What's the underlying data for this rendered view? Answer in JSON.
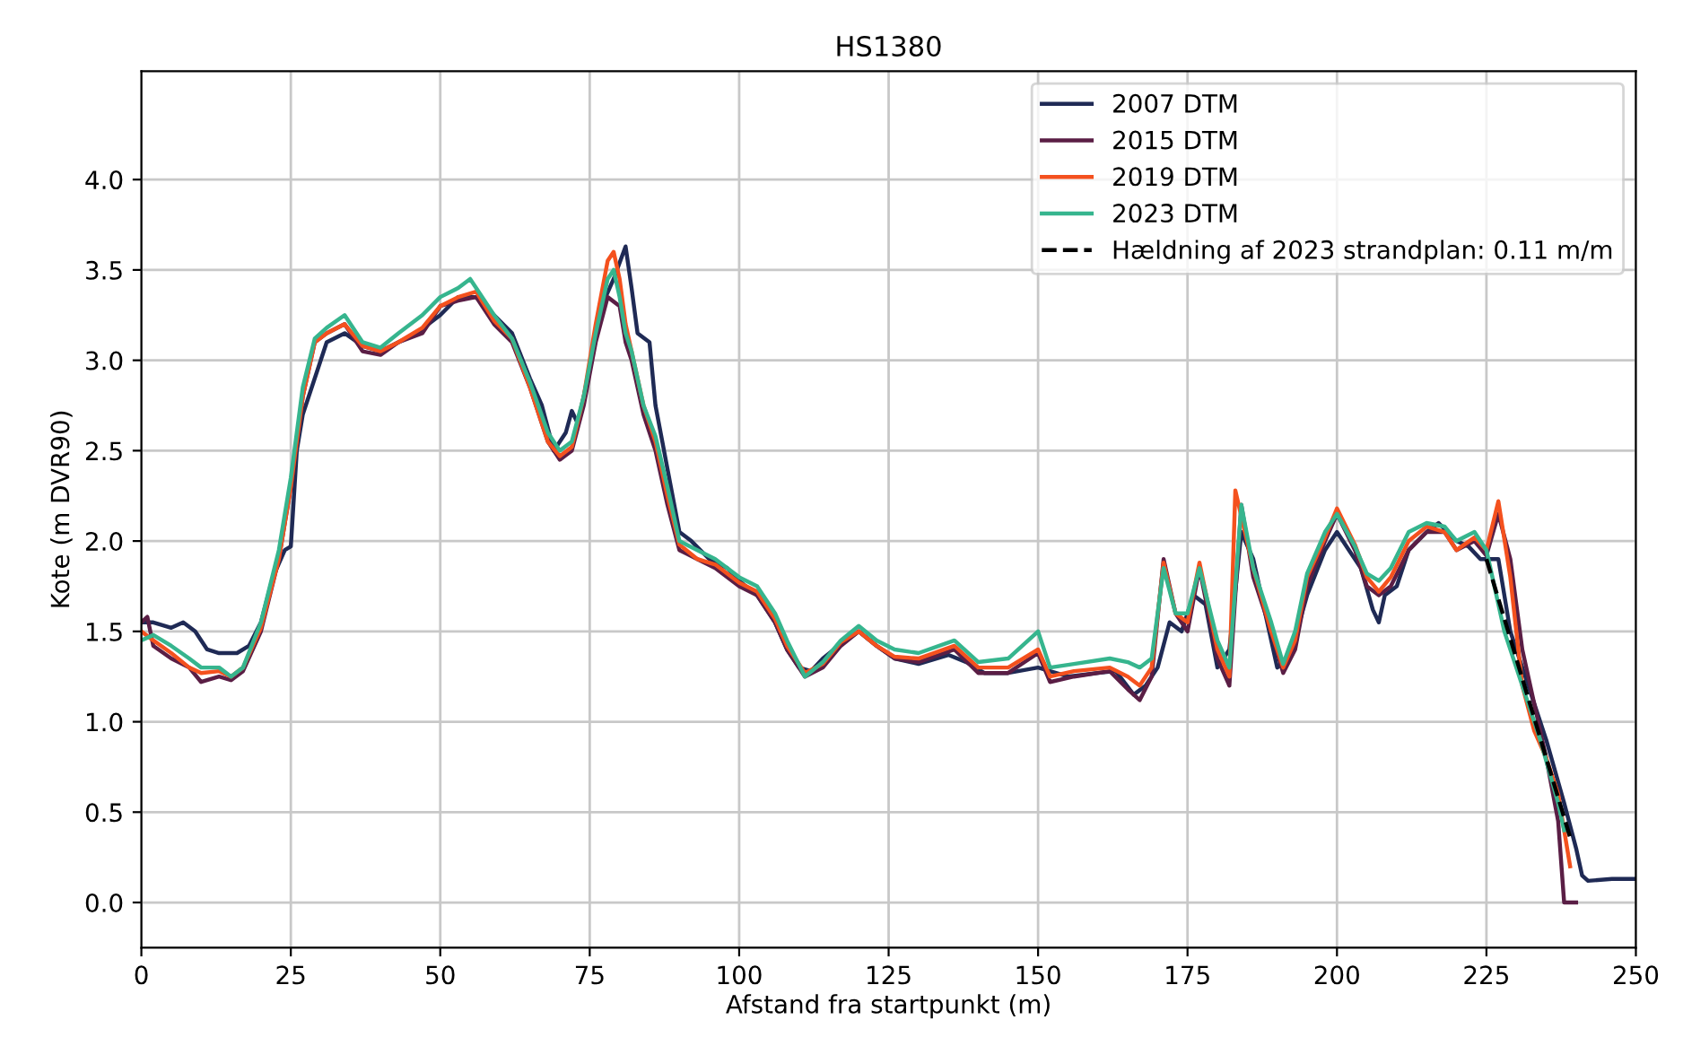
{
  "chart_data": {
    "type": "line",
    "title": "HS1380",
    "xlabel": "Afstand fra startpunkt (m)",
    "ylabel": "Kote (m DVR90)",
    "xlim": [
      0,
      250
    ],
    "xticks": [
      0,
      25,
      50,
      75,
      100,
      125,
      150,
      175,
      200,
      225,
      250
    ],
    "ylim": [
      -0.25,
      4.6
    ],
    "yticks": [
      {
        "value": 0,
        "label": "0.0"
      },
      {
        "value": 0.5,
        "label": "0.5"
      },
      {
        "value": 1,
        "label": "1.0"
      },
      {
        "value": 1.5,
        "label": "1.5"
      },
      {
        "value": 2,
        "label": "2.0"
      },
      {
        "value": 2.5,
        "label": "2.5"
      },
      {
        "value": 3,
        "label": "3.0"
      },
      {
        "value": 3.5,
        "label": "3.5"
      },
      {
        "value": 4,
        "label": "4.0"
      }
    ],
    "grid": true,
    "legend": "top right",
    "series": [
      {
        "name": "2007 DTM",
        "color": "#1f2a55",
        "x": [
          0,
          2,
          5,
          7,
          9,
          11,
          13,
          16,
          18,
          20,
          22,
          24,
          25,
          26,
          27,
          29,
          31,
          34,
          37,
          40,
          43,
          46,
          50,
          53,
          56,
          59,
          62,
          65,
          67,
          69,
          71,
          72,
          73,
          75,
          77,
          79,
          81,
          82,
          83,
          85,
          86,
          88,
          90,
          92,
          95,
          98,
          100,
          103,
          106,
          108,
          110,
          112,
          114,
          117,
          120,
          123,
          126,
          130,
          135,
          138,
          141,
          145,
          150,
          155,
          160,
          163,
          166,
          168,
          170,
          172,
          174,
          176,
          178,
          180,
          182,
          184,
          186,
          188,
          190,
          192,
          195,
          198,
          200,
          202,
          204,
          206,
          207,
          208,
          210,
          212,
          215,
          217,
          220,
          222,
          224,
          227,
          229,
          232,
          235,
          238,
          240,
          241,
          242,
          246,
          250
        ],
        "values": [
          1.55,
          1.55,
          1.52,
          1.55,
          1.5,
          1.4,
          1.38,
          1.38,
          1.42,
          1.55,
          1.8,
          1.95,
          1.97,
          2.5,
          2.7,
          2.9,
          3.1,
          3.15,
          3.08,
          3.05,
          3.1,
          3.15,
          3.25,
          3.35,
          3.35,
          3.25,
          3.15,
          2.9,
          2.75,
          2.5,
          2.6,
          2.72,
          2.65,
          2.95,
          3.3,
          3.45,
          3.63,
          3.4,
          3.15,
          3.1,
          2.75,
          2.4,
          2.05,
          2.0,
          1.9,
          1.85,
          1.78,
          1.7,
          1.55,
          1.4,
          1.3,
          1.28,
          1.35,
          1.43,
          1.5,
          1.42,
          1.35,
          1.32,
          1.37,
          1.33,
          1.27,
          1.27,
          1.3,
          1.25,
          1.27,
          1.28,
          1.15,
          1.2,
          1.3,
          1.55,
          1.5,
          1.7,
          1.65,
          1.3,
          1.4,
          2.05,
          1.9,
          1.6,
          1.3,
          1.35,
          1.7,
          1.95,
          2.05,
          1.95,
          1.85,
          1.62,
          1.55,
          1.7,
          1.75,
          1.95,
          2.05,
          2.1,
          2.0,
          1.97,
          1.9,
          1.9,
          1.5,
          1.2,
          0.9,
          0.55,
          0.3,
          0.15,
          0.12,
          0.13,
          0.13
        ]
      },
      {
        "name": "2015 DTM",
        "color": "#5a1e45",
        "x": [
          0,
          1,
          2,
          5,
          8,
          10,
          13,
          15,
          17,
          20,
          23,
          25,
          27,
          29,
          31,
          34,
          37,
          40,
          43,
          47,
          50,
          53,
          56,
          59,
          62,
          65,
          68,
          70,
          72,
          74,
          76,
          78,
          80,
          81,
          82,
          84,
          86,
          88,
          90,
          93,
          96,
          100,
          103,
          106,
          108,
          111,
          114,
          117,
          120,
          123,
          126,
          130,
          136,
          140,
          145,
          150,
          152,
          156,
          162,
          165,
          167,
          169,
          171,
          173,
          175,
          177,
          180,
          182,
          184,
          186,
          189,
          191,
          193,
          195,
          198,
          200,
          203,
          205,
          207,
          209,
          212,
          215,
          218,
          220,
          223,
          225,
          227,
          229,
          231,
          233,
          235,
          237,
          238,
          240
        ],
        "values": [
          1.55,
          1.58,
          1.42,
          1.35,
          1.3,
          1.22,
          1.25,
          1.23,
          1.28,
          1.5,
          1.9,
          2.3,
          2.8,
          3.1,
          3.15,
          3.2,
          3.05,
          3.03,
          3.1,
          3.15,
          3.3,
          3.33,
          3.35,
          3.2,
          3.1,
          2.85,
          2.55,
          2.45,
          2.5,
          2.75,
          3.1,
          3.35,
          3.3,
          3.1,
          3.0,
          2.7,
          2.5,
          2.2,
          1.95,
          1.9,
          1.85,
          1.75,
          1.7,
          1.55,
          1.4,
          1.25,
          1.3,
          1.42,
          1.5,
          1.42,
          1.35,
          1.33,
          1.4,
          1.27,
          1.27,
          1.38,
          1.22,
          1.25,
          1.28,
          1.18,
          1.12,
          1.25,
          1.9,
          1.6,
          1.5,
          1.85,
          1.35,
          1.2,
          2.2,
          1.8,
          1.5,
          1.27,
          1.4,
          1.75,
          2.0,
          2.15,
          1.95,
          1.75,
          1.7,
          1.75,
          1.95,
          2.05,
          2.05,
          1.95,
          2.0,
          1.92,
          2.15,
          1.9,
          1.4,
          1.1,
          0.8,
          0.45,
          0.0,
          0.0
        ]
      },
      {
        "name": "2019 DTM",
        "color": "#f4511e",
        "x": [
          0,
          2,
          5,
          8,
          10,
          13,
          15,
          17,
          20,
          23,
          25,
          27,
          29,
          31,
          34,
          37,
          40,
          43,
          47,
          50,
          53,
          56,
          59,
          62,
          65,
          68,
          70,
          72,
          74,
          76,
          78,
          79,
          80,
          81,
          82,
          84,
          86,
          88,
          90,
          93,
          96,
          100,
          103,
          106,
          108,
          111,
          114,
          117,
          120,
          123,
          126,
          130,
          136,
          140,
          145,
          150,
          152,
          156,
          162,
          165,
          167,
          169,
          171,
          173,
          175,
          177,
          180,
          182,
          183,
          186,
          189,
          191,
          193,
          195,
          198,
          200,
          203,
          205,
          207,
          209,
          212,
          215,
          218,
          220,
          223,
          225,
          227,
          229,
          231,
          233,
          235,
          237,
          239
        ],
        "values": [
          1.5,
          1.45,
          1.38,
          1.3,
          1.27,
          1.28,
          1.25,
          1.3,
          1.52,
          1.9,
          2.3,
          2.8,
          3.1,
          3.15,
          3.2,
          3.08,
          3.05,
          3.1,
          3.18,
          3.3,
          3.35,
          3.38,
          3.22,
          3.12,
          2.85,
          2.55,
          2.47,
          2.52,
          2.8,
          3.2,
          3.55,
          3.6,
          3.45,
          3.2,
          3.05,
          2.75,
          2.55,
          2.25,
          1.98,
          1.9,
          1.87,
          1.77,
          1.72,
          1.57,
          1.42,
          1.27,
          1.32,
          1.44,
          1.5,
          1.42,
          1.36,
          1.35,
          1.42,
          1.3,
          1.3,
          1.4,
          1.25,
          1.28,
          1.3,
          1.25,
          1.2,
          1.3,
          1.88,
          1.6,
          1.55,
          1.88,
          1.4,
          1.25,
          2.28,
          1.85,
          1.5,
          1.3,
          1.45,
          1.8,
          2.02,
          2.18,
          1.98,
          1.8,
          1.72,
          1.8,
          2.0,
          2.08,
          2.05,
          1.95,
          2.02,
          1.95,
          2.22,
          1.8,
          1.2,
          0.95,
          0.8,
          0.6,
          0.2
        ]
      },
      {
        "name": "2023 DTM",
        "color": "#36b58e",
        "x": [
          0,
          2,
          5,
          8,
          10,
          13,
          15,
          17,
          20,
          23,
          25,
          27,
          29,
          31,
          34,
          37,
          40,
          43,
          47,
          50,
          53,
          55,
          56,
          59,
          62,
          65,
          68,
          70,
          72,
          74,
          76,
          78,
          79,
          80,
          81,
          82,
          84,
          86,
          88,
          90,
          93,
          96,
          100,
          103,
          106,
          108,
          111,
          114,
          117,
          120,
          123,
          126,
          130,
          136,
          140,
          145,
          150,
          152,
          156,
          162,
          165,
          167,
          169,
          171,
          173,
          175,
          177,
          180,
          182,
          184,
          186,
          189,
          191,
          193,
          195,
          198,
          200,
          203,
          205,
          207,
          209,
          212,
          215,
          218,
          220,
          223,
          225,
          228,
          231,
          234,
          237,
          238
        ],
        "values": [
          1.45,
          1.48,
          1.42,
          1.35,
          1.3,
          1.3,
          1.25,
          1.3,
          1.55,
          1.95,
          2.35,
          2.85,
          3.12,
          3.18,
          3.25,
          3.1,
          3.07,
          3.15,
          3.25,
          3.35,
          3.4,
          3.45,
          3.4,
          3.25,
          3.12,
          2.88,
          2.6,
          2.5,
          2.55,
          2.8,
          3.15,
          3.45,
          3.5,
          3.35,
          3.15,
          3.05,
          2.75,
          2.58,
          2.3,
          2.0,
          1.95,
          1.9,
          1.8,
          1.75,
          1.6,
          1.45,
          1.25,
          1.33,
          1.45,
          1.53,
          1.45,
          1.4,
          1.38,
          1.45,
          1.33,
          1.35,
          1.5,
          1.3,
          1.32,
          1.35,
          1.33,
          1.3,
          1.35,
          1.85,
          1.6,
          1.6,
          1.85,
          1.45,
          1.3,
          2.2,
          1.85,
          1.55,
          1.32,
          1.5,
          1.82,
          2.05,
          2.15,
          1.97,
          1.82,
          1.78,
          1.85,
          2.05,
          2.1,
          2.08,
          2.0,
          2.05,
          1.95,
          1.5,
          1.2,
          0.9,
          0.55,
          0.4
        ]
      },
      {
        "name": "Hældning af 2023 strandplan: 0.11 m/m",
        "color": "#000000",
        "line_style": "dashed",
        "x": [
          225,
          239
        ],
        "values": [
          1.9,
          0.36
        ]
      }
    ]
  }
}
